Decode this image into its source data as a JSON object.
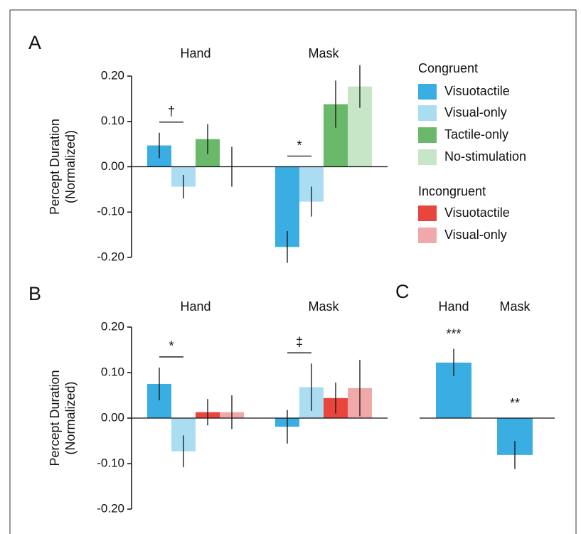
{
  "chart_data": [
    {
      "type": "bar",
      "panel": "A",
      "ylabel": [
        "Percept Duration",
        "(Normalized)"
      ],
      "categories": [
        "Hand",
        "Mask"
      ],
      "legend_title": "Congruent",
      "series": [
        {
          "name": "Visuotactile",
          "color": "#3aaee2",
          "values": [
            0.047,
            -0.177
          ],
          "errors": [
            0.028,
            0.035
          ]
        },
        {
          "name": "Visual-only",
          "color": "#aadcf2",
          "values": [
            -0.044,
            -0.077
          ],
          "errors": [
            0.026,
            0.033
          ]
        },
        {
          "name": "Tactile-only",
          "color": "#6ab86a",
          "values": [
            0.061,
            0.138
          ],
          "errors": [
            0.033,
            0.052
          ]
        },
        {
          "name": "No-stimulation",
          "color": "#c7e5c7",
          "values": [
            0,
            0.177
          ],
          "errors": [
            0.044,
            0.047
          ]
        }
      ],
      "annotations": [
        "†",
        "*"
      ],
      "ylim": [
        -0.2,
        0.2
      ],
      "yticks": [
        {
          "value": -0.2,
          "label": "-0.20"
        },
        {
          "value": -0.1,
          "label": "-0.10"
        },
        {
          "value": 0,
          "label": "0.00"
        },
        {
          "value": 0.1,
          "label": "0.10"
        },
        {
          "value": 0.2,
          "label": "0.20"
        }
      ]
    },
    {
      "type": "bar",
      "panel": "B",
      "ylabel": [
        "Percept Duration",
        "(Normalized)"
      ],
      "categories": [
        "Hand",
        "Mask"
      ],
      "legend_title": "Incongruent",
      "series": [
        {
          "name": "Visuotactile",
          "color": "#3aaee2",
          "values": [
            0.075,
            -0.019
          ],
          "errors": [
            0.036,
            0.037
          ]
        },
        {
          "name": "Visual-only",
          "color": "#aadcf2",
          "values": [
            -0.073,
            0.068
          ],
          "errors": [
            0.035,
            0.052
          ]
        },
        {
          "name": "Visuotactile",
          "color": "#e8453c",
          "values": [
            0.013,
            0.044
          ],
          "errors": [
            0.029,
            0.034
          ]
        },
        {
          "name": "Visual-only",
          "color": "#f0a8a8",
          "values": [
            0.013,
            0.066
          ],
          "errors": [
            0.037,
            0.062
          ]
        }
      ],
      "annotations": [
        "*",
        "‡"
      ],
      "ylim": [
        -0.2,
        0.2
      ],
      "yticks": [
        {
          "value": -0.2,
          "label": "-0.20"
        },
        {
          "value": -0.1,
          "label": "-0.10"
        },
        {
          "value": 0,
          "label": "0.00"
        },
        {
          "value": 0.1,
          "label": "0.10"
        },
        {
          "value": 0.2,
          "label": "0.20"
        }
      ]
    },
    {
      "type": "bar",
      "panel": "C",
      "categories": [
        "Hand",
        "Mask"
      ],
      "series": [
        {
          "color": "#3aaee2",
          "values": [
            0.122,
            -0.081
          ],
          "errors": [
            0.03,
            0.031
          ]
        }
      ],
      "annotations": [
        "***",
        "**"
      ],
      "ylim": [
        -0.2,
        0.2
      ]
    }
  ]
}
